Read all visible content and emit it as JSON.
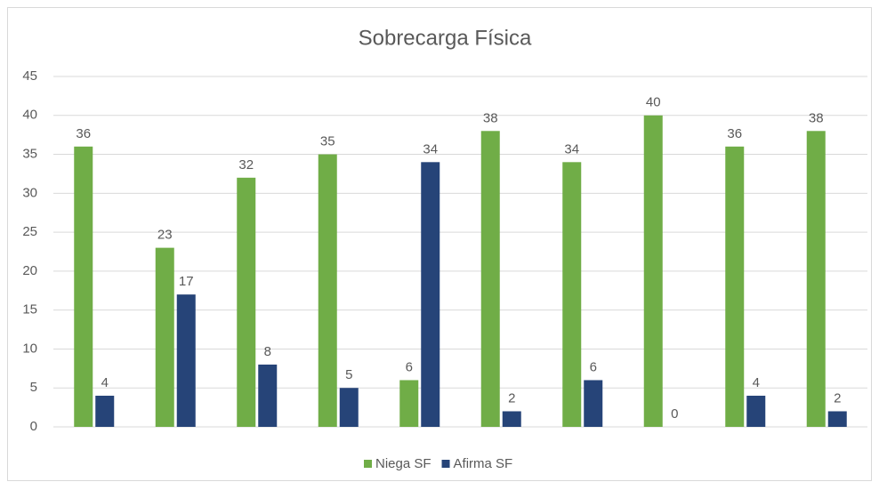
{
  "chart_data": {
    "type": "bar",
    "title": "Sobrecarga Física",
    "categories": [
      null,
      null,
      null,
      null,
      null,
      null,
      null,
      null,
      null,
      null
    ],
    "series": [
      {
        "name": "Niega SF",
        "color": "#70ad47",
        "values": [
          36,
          23,
          32,
          35,
          6,
          38,
          34,
          40,
          36,
          38
        ]
      },
      {
        "name": "Afirma SF",
        "color": "#264478",
        "values": [
          4,
          17,
          8,
          5,
          34,
          2,
          6,
          0,
          4,
          2
        ]
      }
    ],
    "ylim": [
      0,
      45
    ],
    "yticks": [
      0,
      5,
      10,
      15,
      20,
      25,
      30,
      35,
      40,
      45
    ],
    "grid": true,
    "legend": "bottom"
  }
}
